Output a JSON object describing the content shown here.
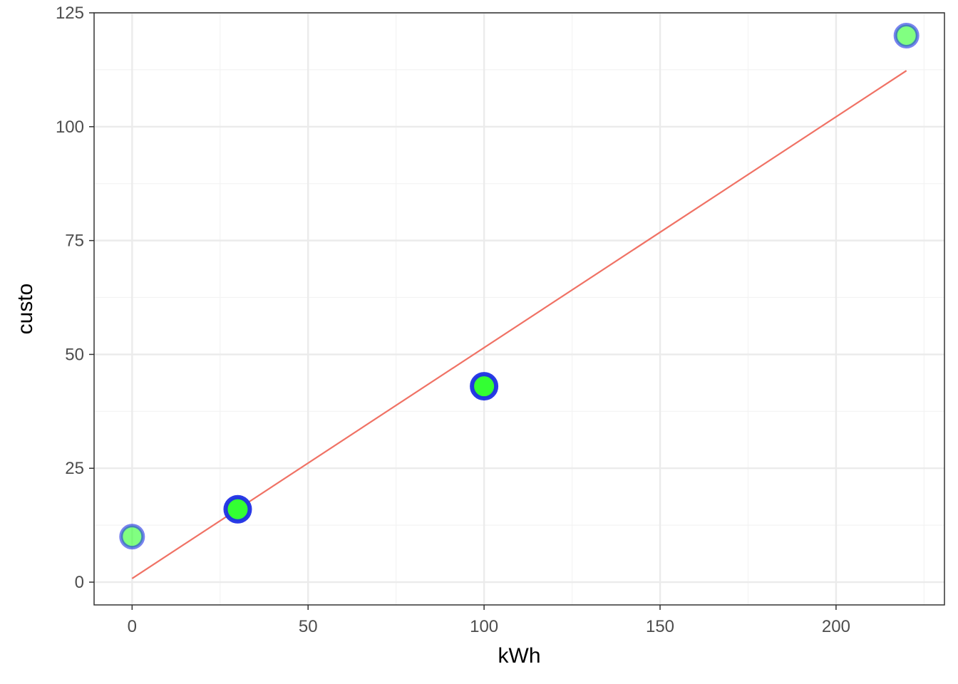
{
  "chart_data": {
    "type": "scatter",
    "title": "",
    "xlabel": "kWh",
    "ylabel": "custo",
    "xlim": [
      -10.8,
      230.8
    ],
    "ylim": [
      -5,
      125
    ],
    "x_ticks": [
      0,
      50,
      100,
      150,
      200
    ],
    "y_ticks": [
      0,
      25,
      50,
      75,
      100,
      125
    ],
    "x_tick_labels": [
      "0",
      "50",
      "100",
      "150",
      "200"
    ],
    "y_tick_labels": [
      "0",
      "25",
      "50",
      "75",
      "100",
      "125"
    ],
    "x_minor": [
      25,
      75,
      125,
      175,
      225
    ],
    "y_minor": [
      12.5,
      37.5,
      62.5,
      87.5,
      112.5
    ],
    "grid": true,
    "points": [
      {
        "x": 0,
        "y": 10,
        "emphasis": "light"
      },
      {
        "x": 30,
        "y": 16,
        "emphasis": "strong"
      },
      {
        "x": 100,
        "y": 43,
        "emphasis": "strong"
      },
      {
        "x": 220,
        "y": 120,
        "emphasis": "light"
      }
    ],
    "fit_line": {
      "x": [
        0,
        220
      ],
      "y": [
        0.8,
        112.3
      ]
    },
    "colors": {
      "point_fill": "#33ff33",
      "point_stroke": "#1f2fe6",
      "fit_line": "#f07265",
      "grid_major": "#ebebeb",
      "grid_minor": "#f3f3f3",
      "panel_border": "#333333"
    }
  }
}
